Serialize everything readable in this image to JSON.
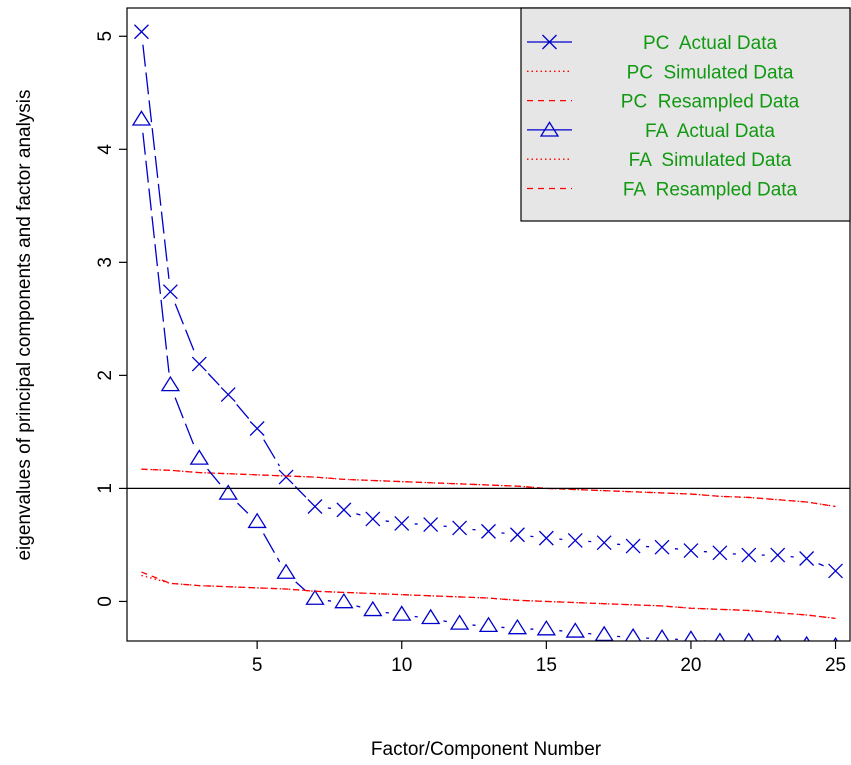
{
  "chart_data": {
    "type": "line",
    "xlabel": "Factor/Component Number",
    "ylabel": "eigenvalues of principal components and factor analysis",
    "xlim": [
      0.5,
      25.5
    ],
    "ylim": [
      -0.35,
      5.25
    ],
    "xticks": [
      5,
      10,
      15,
      20,
      25
    ],
    "yticks": [
      0,
      1,
      2,
      3,
      4,
      5
    ],
    "reference_line": {
      "y": 1,
      "color": "#000000"
    },
    "legend": {
      "placement": "top-right",
      "background": "#e6e6e6",
      "text_color": "#119911",
      "entries": [
        {
          "label": "PC  Actual Data",
          "style": "solid-cross",
          "color": "#0000cc"
        },
        {
          "label": "PC  Simulated Data",
          "style": "dotted",
          "color": "#ff0000"
        },
        {
          "label": "PC  Resampled Data",
          "style": "dashed",
          "color": "#ff0000"
        },
        {
          "label": "FA  Actual Data",
          "style": "solid-triangle",
          "color": "#0000cc"
        },
        {
          "label": "FA  Simulated Data",
          "style": "dotted",
          "color": "#ff0000"
        },
        {
          "label": "FA  Resampled Data",
          "style": "dashed",
          "color": "#ff0000"
        }
      ]
    },
    "x": [
      1,
      2,
      3,
      4,
      5,
      6,
      7,
      8,
      9,
      10,
      11,
      12,
      13,
      14,
      15,
      16,
      17,
      18,
      19,
      20,
      21,
      22,
      23,
      24,
      25
    ],
    "series": [
      {
        "name": "PC  Actual Data",
        "marker": "cross",
        "color": "#0000cc",
        "values": [
          5.04,
          2.74,
          2.1,
          1.83,
          1.53,
          1.1,
          0.84,
          0.81,
          0.73,
          0.69,
          0.68,
          0.65,
          0.62,
          0.59,
          0.56,
          0.54,
          0.52,
          0.49,
          0.48,
          0.45,
          0.43,
          0.41,
          0.41,
          0.38,
          0.27
        ]
      },
      {
        "name": "PC  Simulated Data",
        "line": "dotted",
        "color": "#ff0000",
        "values": [
          1.17,
          1.16,
          1.14,
          1.13,
          1.12,
          1.11,
          1.1,
          1.08,
          1.07,
          1.06,
          1.05,
          1.04,
          1.03,
          1.02,
          1.0,
          0.99,
          0.98,
          0.97,
          0.96,
          0.95,
          0.93,
          0.92,
          0.9,
          0.88,
          0.84
        ]
      },
      {
        "name": "PC  Resampled Data",
        "line": "dashed",
        "color": "#ff0000",
        "values": [
          1.17,
          1.16,
          1.14,
          1.13,
          1.12,
          1.11,
          1.1,
          1.08,
          1.07,
          1.06,
          1.05,
          1.04,
          1.03,
          1.02,
          1.0,
          0.99,
          0.98,
          0.97,
          0.96,
          0.95,
          0.93,
          0.92,
          0.9,
          0.88,
          0.84
        ]
      },
      {
        "name": "FA  Actual Data",
        "marker": "triangle",
        "color": "#0000cc",
        "values": [
          4.26,
          1.91,
          1.26,
          0.95,
          0.7,
          0.25,
          0.02,
          -0.01,
          -0.08,
          -0.12,
          -0.15,
          -0.2,
          -0.22,
          -0.24,
          -0.25,
          -0.27,
          -0.3,
          -0.32,
          -0.33,
          -0.34,
          -0.36,
          -0.36,
          -0.38,
          -0.39,
          -0.4
        ]
      },
      {
        "name": "FA  Simulated Data",
        "line": "dotted",
        "color": "#ff0000",
        "values": [
          0.23,
          0.16,
          0.14,
          0.13,
          0.12,
          0.11,
          0.09,
          0.08,
          0.07,
          0.06,
          0.05,
          0.04,
          0.03,
          0.01,
          0.0,
          -0.01,
          -0.02,
          -0.03,
          -0.04,
          -0.06,
          -0.07,
          -0.08,
          -0.1,
          -0.12,
          -0.15
        ]
      },
      {
        "name": "FA  Resampled Data",
        "line": "dashed",
        "color": "#ff0000",
        "values": [
          0.26,
          0.16,
          0.14,
          0.13,
          0.12,
          0.11,
          0.09,
          0.08,
          0.07,
          0.06,
          0.05,
          0.04,
          0.03,
          0.01,
          0.0,
          -0.01,
          -0.02,
          -0.03,
          -0.04,
          -0.06,
          -0.07,
          -0.08,
          -0.1,
          -0.12,
          -0.15
        ]
      }
    ]
  }
}
